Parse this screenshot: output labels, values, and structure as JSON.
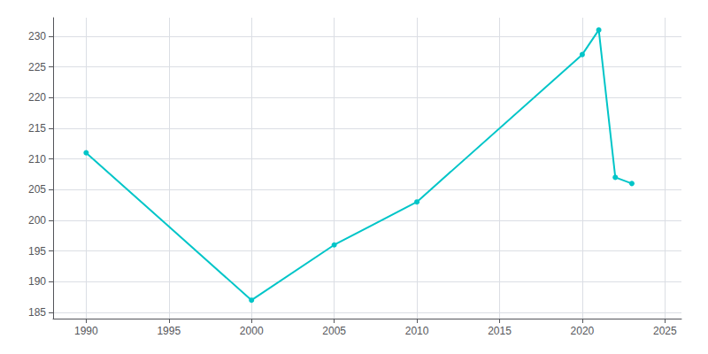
{
  "chart_data": {
    "type": "line",
    "x": [
      1990,
      2000,
      2005,
      2010,
      2020,
      2021,
      2022,
      2023
    ],
    "values": [
      211,
      187,
      196,
      203,
      227,
      231,
      207,
      206
    ],
    "color": "#00C5C8",
    "marker": "circle",
    "xlim": [
      1988,
      2026
    ],
    "ylim": [
      184,
      233
    ],
    "xticks": [
      1990,
      1995,
      2000,
      2005,
      2010,
      2015,
      2020,
      2025
    ],
    "yticks": [
      185,
      190,
      195,
      200,
      205,
      210,
      215,
      220,
      225,
      230
    ],
    "grid": true
  }
}
